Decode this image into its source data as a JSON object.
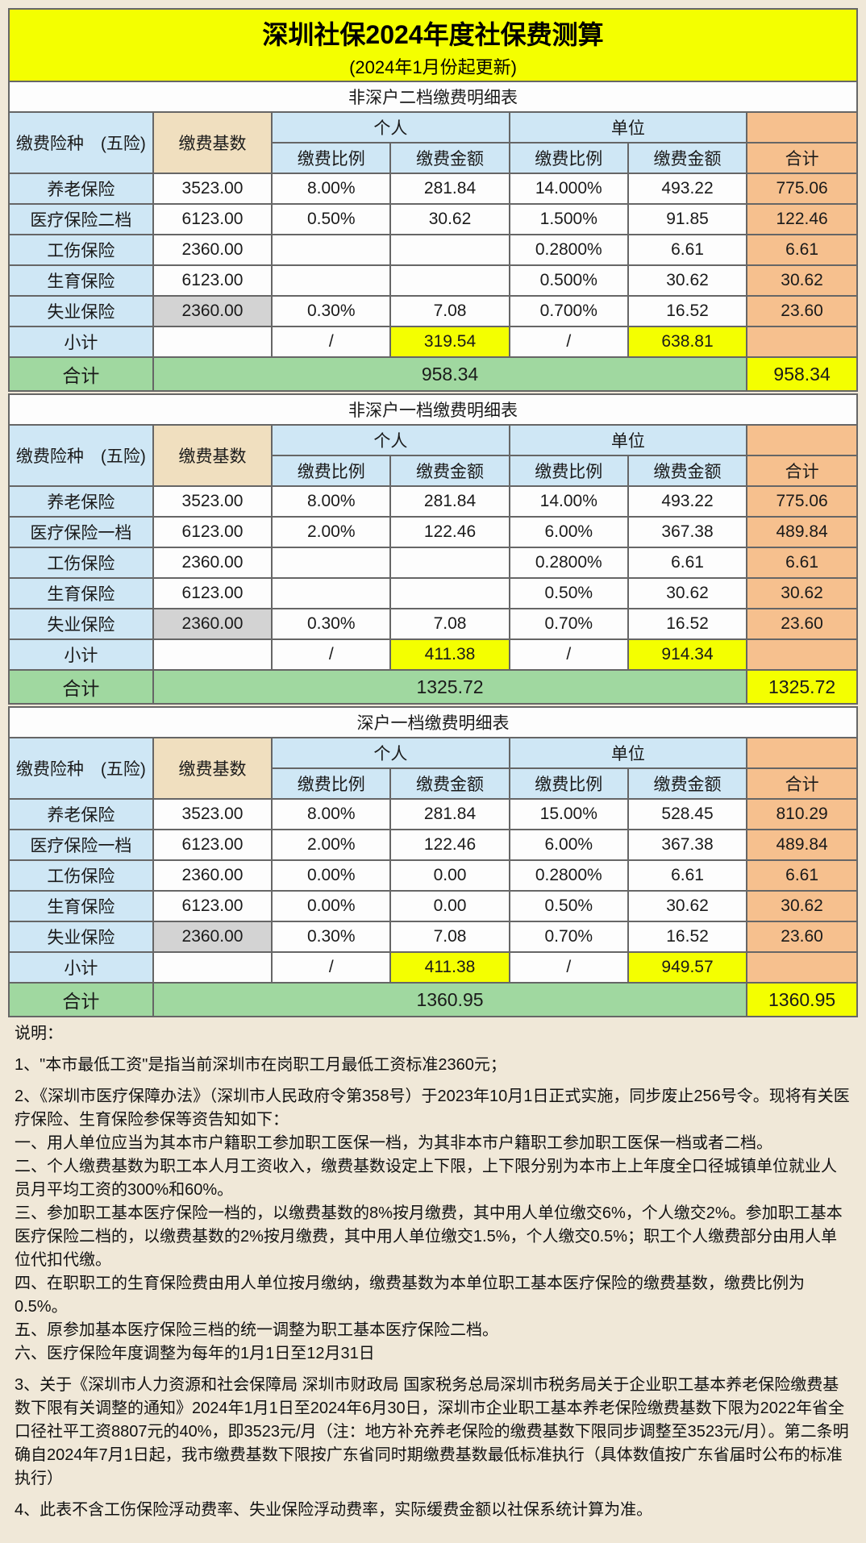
{
  "title": "深圳社保2024年度社保费测算",
  "subtitle": "(2024年1月份起更新)",
  "colHeaders": {
    "type": "缴费险种　(五险)",
    "base": "缴费基数",
    "personal": "个人",
    "company": "单位",
    "rate": "缴费比例",
    "amount": "缴费金额",
    "total": "合计"
  },
  "labels": {
    "subtotal": "小计",
    "grandtotal": "合计",
    "slash": "/"
  },
  "sections": [
    {
      "title": "非深户二档缴费明细表",
      "rows": [
        {
          "name": "养老保险",
          "base": "3523.00",
          "pRate": "8.00%",
          "pAmt": "281.84",
          "cRate": "14.000%",
          "cAmt": "493.22",
          "tot": "775.06",
          "baseGrey": false
        },
        {
          "name": "医疗保险二档",
          "base": "6123.00",
          "pRate": "0.50%",
          "pAmt": "30.62",
          "cRate": "1.500%",
          "cAmt": "91.85",
          "tot": "122.46",
          "baseGrey": false
        },
        {
          "name": "工伤保险",
          "base": "2360.00",
          "pRate": "",
          "pAmt": "",
          "cRate": "0.2800%",
          "cAmt": "6.61",
          "tot": "6.61",
          "baseGrey": false
        },
        {
          "name": "生育保险",
          "base": "6123.00",
          "pRate": "",
          "pAmt": "",
          "cRate": "0.500%",
          "cAmt": "30.62",
          "tot": "30.62",
          "baseGrey": false
        },
        {
          "name": "失业保险",
          "base": "2360.00",
          "pRate": "0.30%",
          "pAmt": "7.08",
          "cRate": "0.700%",
          "cAmt": "16.52",
          "tot": "23.60",
          "baseGrey": true
        }
      ],
      "subtotal": {
        "pAmt": "319.54",
        "cAmt": "638.81"
      },
      "grand": "958.34"
    },
    {
      "title": "非深户一档缴费明细表",
      "rows": [
        {
          "name": "养老保险",
          "base": "3523.00",
          "pRate": "8.00%",
          "pAmt": "281.84",
          "cRate": "14.00%",
          "cAmt": "493.22",
          "tot": "775.06",
          "baseGrey": false
        },
        {
          "name": "医疗保险一档",
          "base": "6123.00",
          "pRate": "2.00%",
          "pAmt": "122.46",
          "cRate": "6.00%",
          "cAmt": "367.38",
          "tot": "489.84",
          "baseGrey": false
        },
        {
          "name": "工伤保险",
          "base": "2360.00",
          "pRate": "",
          "pAmt": "",
          "cRate": "0.2800%",
          "cAmt": "6.61",
          "tot": "6.61",
          "baseGrey": false
        },
        {
          "name": "生育保险",
          "base": "6123.00",
          "pRate": "",
          "pAmt": "",
          "cRate": "0.50%",
          "cAmt": "30.62",
          "tot": "30.62",
          "baseGrey": false
        },
        {
          "name": "失业保险",
          "base": "2360.00",
          "pRate": "0.30%",
          "pAmt": "7.08",
          "cRate": "0.70%",
          "cAmt": "16.52",
          "tot": "23.60",
          "baseGrey": true
        }
      ],
      "subtotal": {
        "pAmt": "411.38",
        "cAmt": "914.34"
      },
      "grand": "1325.72"
    },
    {
      "title": "深户一档缴费明细表",
      "rows": [
        {
          "name": "养老保险",
          "base": "3523.00",
          "pRate": "8.00%",
          "pAmt": "281.84",
          "cRate": "15.00%",
          "cAmt": "528.45",
          "tot": "810.29",
          "baseGrey": false
        },
        {
          "name": "医疗保险一档",
          "base": "6123.00",
          "pRate": "2.00%",
          "pAmt": "122.46",
          "cRate": "6.00%",
          "cAmt": "367.38",
          "tot": "489.84",
          "baseGrey": false
        },
        {
          "name": "工伤保险",
          "base": "2360.00",
          "pRate": "0.00%",
          "pAmt": "0.00",
          "cRate": "0.2800%",
          "cAmt": "6.61",
          "tot": "6.61",
          "baseGrey": false
        },
        {
          "name": "生育保险",
          "base": "6123.00",
          "pRate": "0.00%",
          "pAmt": "0.00",
          "cRate": "0.50%",
          "cAmt": "30.62",
          "tot": "30.62",
          "baseGrey": false
        },
        {
          "name": "失业保险",
          "base": "2360.00",
          "pRate": "0.30%",
          "pAmt": "7.08",
          "cRate": "0.70%",
          "cAmt": "16.52",
          "tot": "23.60",
          "baseGrey": true
        }
      ],
      "subtotal": {
        "pAmt": "411.38",
        "cAmt": "949.57"
      },
      "grand": "1360.95"
    }
  ],
  "notesHeader": "说明：",
  "notes": [
    "1、\"本市最低工资\"是指当前深圳市在岗职工月最低工资标准2360元；",
    "2、《深圳市医疗保障办法》（深圳市人民政府令第358号）于2023年10月1日正式实施，同步废止256号令。现将有关医疗保险、生育保险参保等资告知如下：\n一、用人单位应当为其本市户籍职工参加职工医保一档，为其非本市户籍职工参加职工医保一档或者二档。\n二、个人缴费基数为职工本人月工资收入，缴费基数设定上下限，上下限分别为本市上上年度全口径城镇单位就业人员月平均工资的300%和60%。\n三、参加职工基本医疗保险一档的，以缴费基数的8%按月缴费，其中用人单位缴交6%，个人缴交2%。参加职工基本医疗保险二档的，以缴费基数的2%按月缴费，其中用人单位缴交1.5%，个人缴交0.5%；职工个人缴费部分由用人单位代扣代缴。\n四、在职职工的生育保险费由用人单位按月缴纳，缴费基数为本单位职工基本医疗保险的缴费基数，缴费比例为0.5%。\n五、原参加基本医疗保险三档的统一调整为职工基本医疗保险二档。\n六、医疗保险年度调整为每年的1月1日至12月31日",
    "3、关于《深圳市人力资源和社会保障局 深圳市财政局 国家税务总局深圳市税务局关于企业职工基本养老保险缴费基数下限有关调整的通知》2024年1月1日至2024年6月30日，深圳市企业职工基本养老保险缴费基数下限为2022年省全口径社平工资8807元的40%，即3523元/月（注：地方补充养老保险的缴费基数下限同步调整至3523元/月）。第二条明确自2024年7月1日起，我市缴费基数下限按广东省同时期缴费基数最低标准执行（具体数值按广东省届时公布的标准执行）",
    "4、此表不含工伤保险浮动费率、失业保险浮动费率，实际缓费金额以社保系统计算为准。"
  ]
}
